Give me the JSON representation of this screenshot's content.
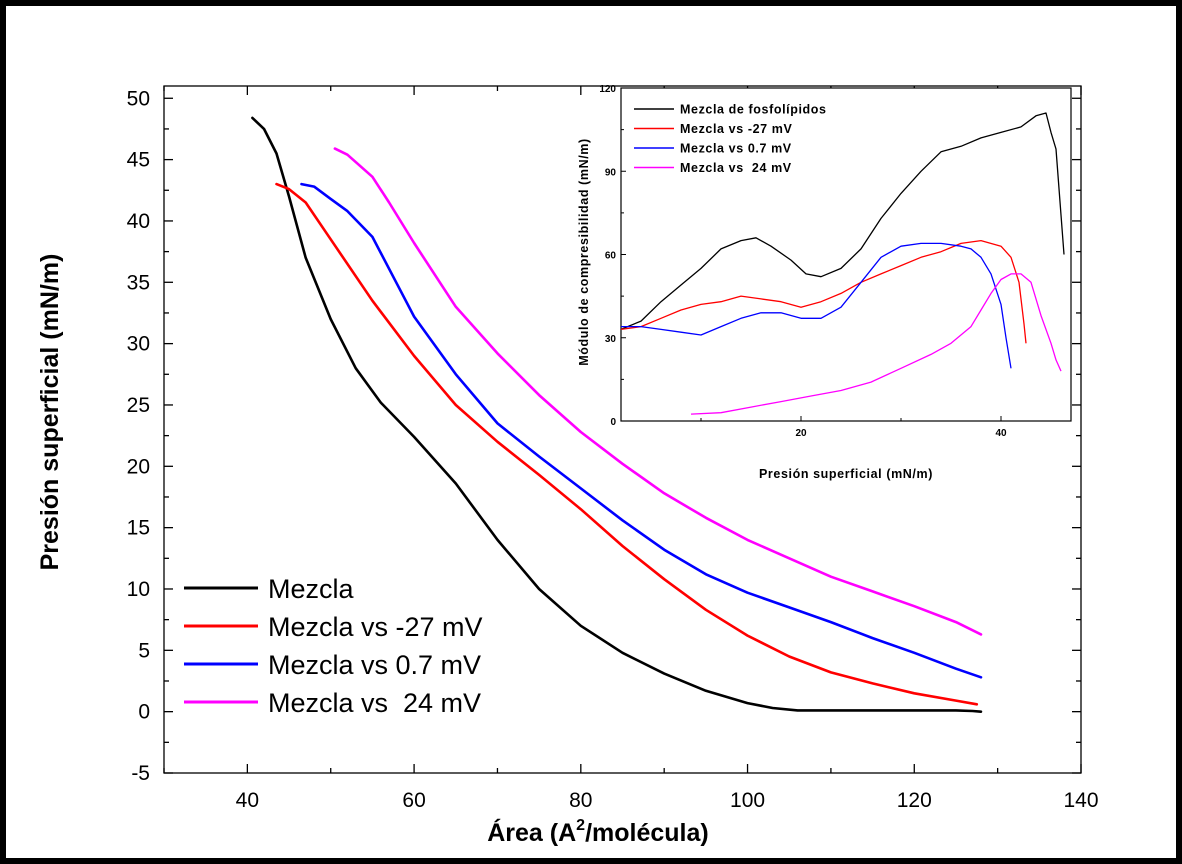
{
  "chart_data": [
    {
      "type": "line",
      "xlabel": "Área (A",
      "xlabel_superscript": "2",
      "xlabel_suffix": "/molécula)",
      "ylabel": "Presión superficial (mN/m)",
      "xlim": [
        30,
        140
      ],
      "ylim": [
        -5,
        51
      ],
      "x_ticks": [
        40,
        60,
        80,
        100,
        120,
        140
      ],
      "y_ticks": [
        -5,
        0,
        5,
        10,
        15,
        20,
        25,
        30,
        35,
        40,
        45,
        50
      ],
      "legend_position": "bottom-left",
      "series": [
        {
          "name": "Mezcla",
          "color": "#000000",
          "x": [
            40.6,
            42,
            43.5,
            45,
            47,
            50,
            53,
            56,
            60,
            65,
            70,
            75,
            80,
            85,
            90,
            95,
            100,
            103,
            106,
            110,
            115,
            120,
            125,
            127,
            128
          ],
          "y": [
            48.4,
            47.5,
            45.5,
            42,
            37,
            32,
            28,
            25.2,
            22.4,
            18.6,
            14,
            10,
            7,
            4.8,
            3.1,
            1.7,
            0.7,
            0.3,
            0.1,
            0.1,
            0.1,
            0.1,
            0.1,
            0.05,
            0.0
          ]
        },
        {
          "name": "Mezcla vs -27 mV",
          "color": "#ff0000",
          "x": [
            43.5,
            45,
            47,
            50,
            55,
            60,
            65,
            70,
            75,
            80,
            85,
            90,
            95,
            100,
            105,
            110,
            115,
            120,
            125,
            127.5
          ],
          "y": [
            43.0,
            42.6,
            41.5,
            38.5,
            33.5,
            29,
            25,
            22,
            19.3,
            16.5,
            13.5,
            10.8,
            8.3,
            6.2,
            4.5,
            3.2,
            2.3,
            1.5,
            0.9,
            0.6
          ]
        },
        {
          "name": "Mezcla vs 0.7 mV",
          "color": "#0000ff",
          "x": [
            46.5,
            48,
            50,
            52,
            55,
            58,
            60,
            65,
            70,
            75,
            80,
            85,
            90,
            95,
            100,
            105,
            110,
            115,
            120,
            125,
            128
          ],
          "y": [
            43.0,
            42.8,
            41.8,
            40.8,
            38.7,
            34.8,
            32.2,
            27.5,
            23.5,
            20.8,
            18.2,
            15.6,
            13.2,
            11.2,
            9.7,
            8.5,
            7.3,
            6.0,
            4.8,
            3.5,
            2.8
          ]
        },
        {
          "name": "Mezcla vs  24 mV",
          "color": "#ff00ff",
          "x": [
            50.5,
            52,
            55,
            57,
            60,
            65,
            70,
            75,
            80,
            85,
            90,
            95,
            100,
            105,
            110,
            115,
            120,
            125,
            128
          ],
          "y": [
            45.9,
            45.4,
            43.6,
            41.5,
            38.2,
            33.0,
            29.2,
            25.8,
            22.8,
            20.2,
            17.8,
            15.8,
            14.0,
            12.5,
            11.0,
            9.8,
            8.6,
            7.3,
            6.3
          ]
        }
      ]
    },
    {
      "type": "line",
      "xlabel": "Presión superficial  (mN/m)",
      "ylabel": "Módulo de compresibilidad  (mN/m)",
      "xlim": [
        2,
        47
      ],
      "ylim": [
        0,
        120
      ],
      "x_ticks": [
        20,
        40
      ],
      "y_ticks": [
        0,
        30,
        60,
        90,
        120
      ],
      "legend_position": "top-left",
      "series": [
        {
          "name": "Mezcla de fosfolípidos",
          "color": "#000000",
          "x": [
            2,
            4,
            6,
            8,
            10,
            12,
            14,
            15.5,
            17,
            19,
            20.5,
            22,
            24,
            26,
            28,
            30,
            32,
            34,
            36,
            38,
            40,
            42,
            43.5,
            44.5,
            45,
            45.5,
            46.3
          ],
          "y": [
            33,
            36,
            43,
            49,
            55,
            62,
            65,
            66,
            63,
            58,
            53,
            52,
            55,
            62,
            73,
            82,
            90,
            97,
            99,
            102,
            104,
            106,
            110,
            111,
            104,
            98,
            60
          ]
        },
        {
          "name": "Mezcla vs -27 mV",
          "color": "#ff0000",
          "x": [
            2,
            4,
            6,
            8,
            10,
            12,
            14,
            16,
            18,
            20,
            22,
            24,
            26,
            28,
            30,
            32,
            34,
            36,
            38,
            40,
            41,
            41.8,
            42.3,
            42.5
          ],
          "y": [
            33,
            34,
            37,
            40,
            42,
            43,
            45,
            44,
            43,
            41,
            43,
            46,
            50,
            53,
            56,
            59,
            61,
            64,
            65,
            63,
            59,
            50,
            35,
            28
          ]
        },
        {
          "name": "Mezcla vs 0.7 mV",
          "color": "#0000ff",
          "x": [
            2,
            4,
            6,
            8,
            10,
            12,
            14,
            16,
            18,
            20,
            22,
            24,
            26,
            28,
            30,
            32,
            34,
            36,
            37,
            38,
            39,
            40,
            40.5,
            41
          ],
          "y": [
            34,
            34,
            33,
            32,
            31,
            34,
            37,
            39,
            39,
            37,
            37,
            41,
            50,
            59,
            63,
            64,
            64,
            63,
            62,
            59,
            53,
            42,
            30,
            19
          ]
        },
        {
          "name": "Mezcla vs  24 mV",
          "color": "#ff00ff",
          "x": [
            9,
            12,
            15,
            18,
            21,
            24,
            27,
            30,
            33,
            35,
            37,
            38,
            39,
            40,
            41,
            42,
            43,
            44,
            45,
            45.5,
            46
          ],
          "y": [
            2.5,
            3,
            5,
            7,
            9,
            11,
            14,
            19,
            24,
            28,
            34,
            40,
            46,
            51,
            53,
            53,
            50,
            38,
            28,
            22,
            18
          ]
        }
      ]
    }
  ]
}
